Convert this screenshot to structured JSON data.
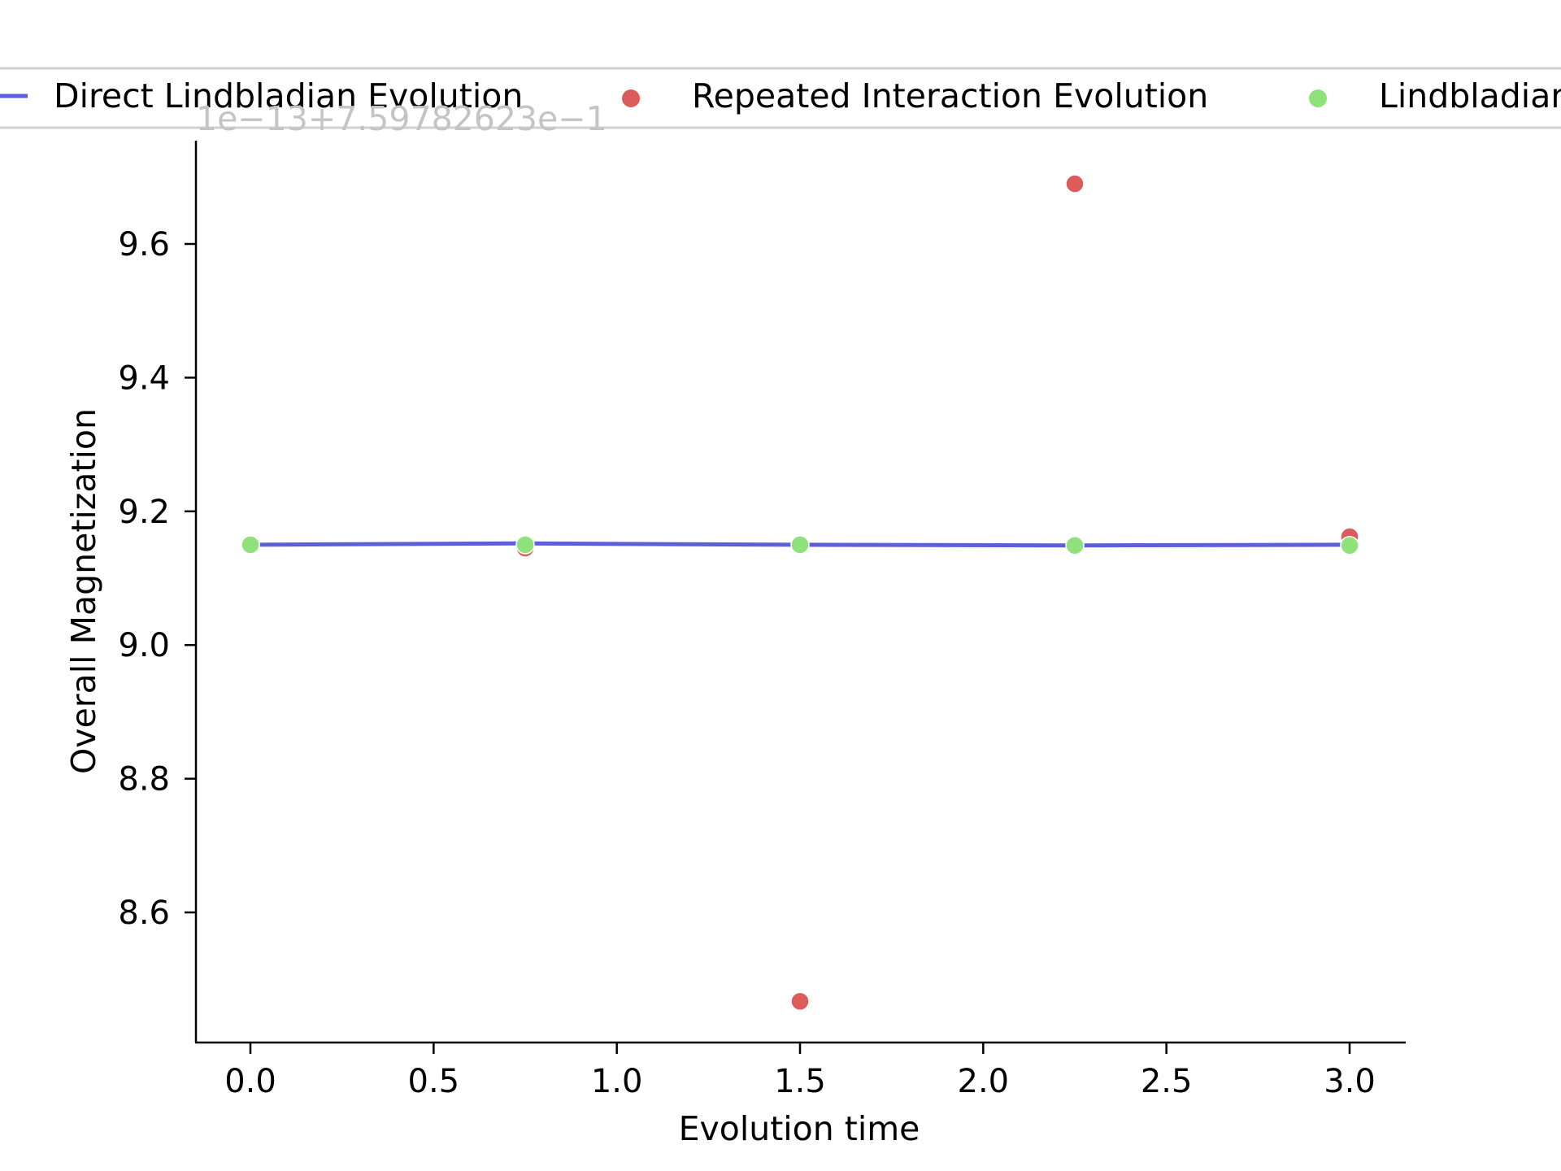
{
  "chart_data": {
    "type": "scatter",
    "title": "",
    "xlabel": "Evolution time",
    "ylabel": "Overall Magnetization",
    "offset_label": "1e−13+7.59782623e−1",
    "xlim": [
      -0.15,
      3.15
    ],
    "ylim": [
      8.46,
      9.76
    ],
    "x_ticks": [
      0.0,
      0.5,
      1.0,
      1.5,
      2.0,
      2.5,
      3.0
    ],
    "x_tick_labels": [
      "0.0",
      "0.5",
      "1.0",
      "1.5",
      "2.0",
      "2.5",
      "3.0"
    ],
    "y_ticks": [
      8.6,
      8.8,
      9.0,
      9.2,
      9.4,
      9.6
    ],
    "y_tick_labels": [
      "8.6",
      "8.8",
      "9.0",
      "9.2",
      "9.4",
      "9.6"
    ],
    "grid": false,
    "legend_placement": "top, above plot",
    "series": [
      {
        "name": "Direct Lindbladian Evolution",
        "kind": "line",
        "color": "#5e5ed8",
        "x": [
          0.0,
          0.75,
          1.5,
          2.25,
          3.0
        ],
        "y": [
          9.15,
          9.152,
          9.15,
          9.149,
          9.15
        ]
      },
      {
        "name": "Repeated Interaction Evolution",
        "kind": "scatter",
        "color": "#dc5c5c",
        "x": [
          0.0,
          0.75,
          1.5,
          2.25,
          3.0
        ],
        "y": [
          9.15,
          9.145,
          8.467,
          9.69,
          9.162
        ]
      },
      {
        "name": "Lindbladian",
        "kind": "scatter",
        "color": "#8fe27a",
        "x": [
          0.0,
          0.75,
          1.5,
          2.25,
          3.0
        ],
        "y": [
          9.15,
          9.15,
          9.15,
          9.149,
          9.149
        ]
      }
    ]
  }
}
